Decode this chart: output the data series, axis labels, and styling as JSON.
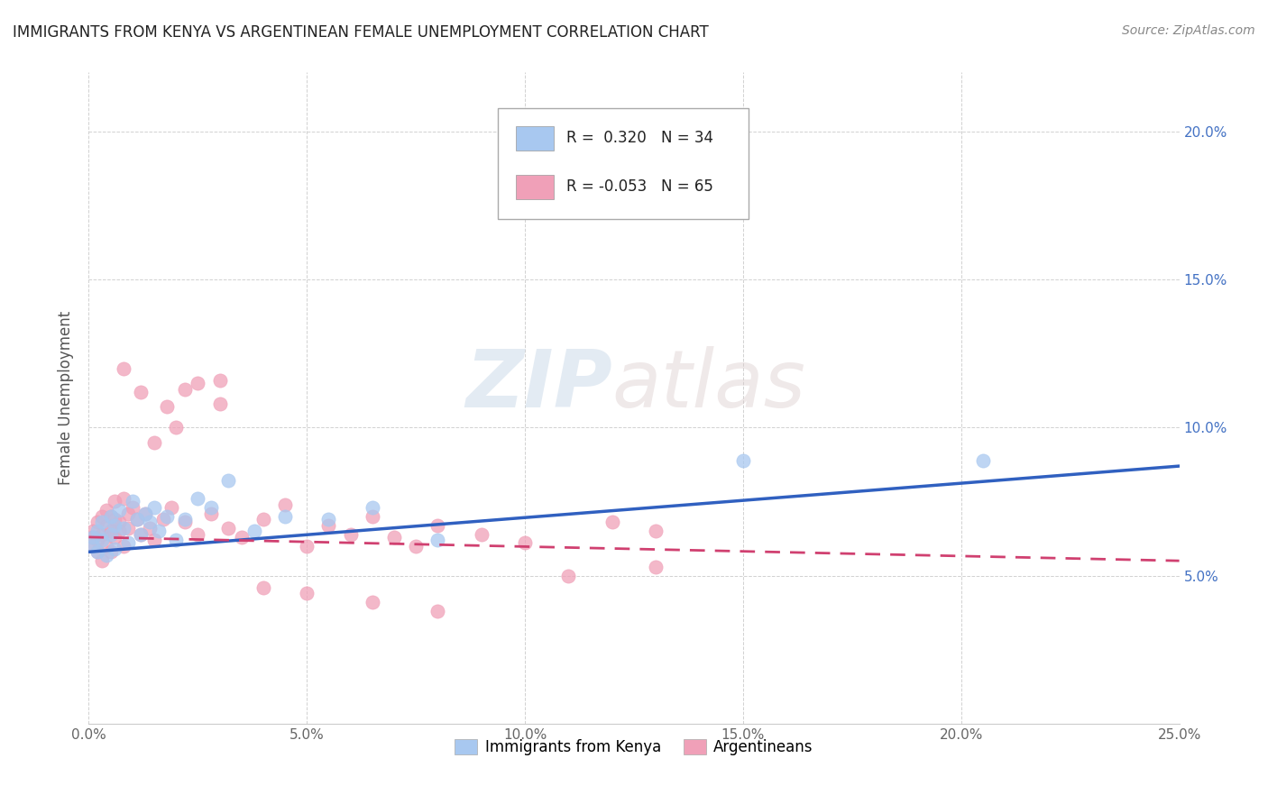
{
  "title": "IMMIGRANTS FROM KENYA VS ARGENTINEAN FEMALE UNEMPLOYMENT CORRELATION CHART",
  "source": "Source: ZipAtlas.com",
  "ylabel": "Female Unemployment",
  "xlim": [
    0.0,
    0.25
  ],
  "ylim": [
    0.0,
    0.22
  ],
  "xtick_vals": [
    0.0,
    0.05,
    0.1,
    0.15,
    0.2,
    0.25
  ],
  "xtick_labels": [
    "0.0%",
    "5.0%",
    "10.0%",
    "15.0%",
    "20.0%",
    "25.0%"
  ],
  "ytick_vals": [
    0.05,
    0.1,
    0.15,
    0.2
  ],
  "ytick_labels": [
    "5.0%",
    "10.0%",
    "15.0%",
    "20.0%"
  ],
  "right_ytick_vals": [
    0.05,
    0.1,
    0.15,
    0.2
  ],
  "right_ytick_labels": [
    "5.0%",
    "10.0%",
    "15.0%",
    "20.0%"
  ],
  "legend_r1": "R =  0.320",
  "legend_n1": "N = 34",
  "legend_r2": "R = -0.053",
  "legend_n2": "N = 65",
  "legend_labels_bottom": [
    "Immigrants from Kenya",
    "Argentineans"
  ],
  "watermark_zip": "ZIP",
  "watermark_atlas": "atlas",
  "kenya_color": "#a8c8f0",
  "arg_color": "#f0a0b8",
  "kenya_line_color": "#3060c0",
  "arg_line_color": "#d04070",
  "background_color": "#ffffff",
  "grid_color": "#cccccc",
  "kenya_scatter_x": [
    0.001,
    0.001,
    0.002,
    0.002,
    0.003,
    0.003,
    0.004,
    0.005,
    0.005,
    0.006,
    0.006,
    0.007,
    0.008,
    0.009,
    0.01,
    0.011,
    0.012,
    0.013,
    0.014,
    0.015,
    0.016,
    0.018,
    0.02,
    0.022,
    0.025,
    0.028,
    0.032,
    0.038,
    0.045,
    0.055,
    0.065,
    0.08,
    0.15,
    0.205
  ],
  "kenya_scatter_y": [
    0.06,
    0.063,
    0.058,
    0.065,
    0.062,
    0.068,
    0.057,
    0.07,
    0.064,
    0.067,
    0.059,
    0.072,
    0.066,
    0.061,
    0.075,
    0.069,
    0.064,
    0.071,
    0.068,
    0.073,
    0.065,
    0.07,
    0.062,
    0.069,
    0.076,
    0.073,
    0.082,
    0.065,
    0.07,
    0.069,
    0.073,
    0.062,
    0.089,
    0.089
  ],
  "arg_scatter_x": [
    0.001,
    0.001,
    0.001,
    0.002,
    0.002,
    0.002,
    0.003,
    0.003,
    0.003,
    0.004,
    0.004,
    0.004,
    0.005,
    0.005,
    0.005,
    0.006,
    0.006,
    0.006,
    0.007,
    0.007,
    0.008,
    0.008,
    0.009,
    0.009,
    0.01,
    0.011,
    0.012,
    0.013,
    0.014,
    0.015,
    0.017,
    0.019,
    0.022,
    0.025,
    0.028,
    0.032,
    0.035,
    0.04,
    0.045,
    0.05,
    0.055,
    0.06,
    0.065,
    0.07,
    0.075,
    0.08,
    0.09,
    0.1,
    0.12,
    0.13,
    0.025,
    0.03,
    0.015,
    0.02,
    0.008,
    0.012,
    0.018,
    0.022,
    0.03,
    0.04,
    0.05,
    0.065,
    0.08,
    0.11,
    0.13
  ],
  "arg_scatter_y": [
    0.06,
    0.063,
    0.065,
    0.058,
    0.062,
    0.068,
    0.055,
    0.07,
    0.064,
    0.06,
    0.067,
    0.072,
    0.058,
    0.065,
    0.07,
    0.063,
    0.069,
    0.075,
    0.065,
    0.068,
    0.06,
    0.076,
    0.071,
    0.066,
    0.073,
    0.069,
    0.064,
    0.071,
    0.066,
    0.062,
    0.069,
    0.073,
    0.068,
    0.064,
    0.071,
    0.066,
    0.063,
    0.069,
    0.074,
    0.06,
    0.067,
    0.064,
    0.07,
    0.063,
    0.06,
    0.067,
    0.064,
    0.061,
    0.068,
    0.065,
    0.115,
    0.108,
    0.095,
    0.1,
    0.12,
    0.112,
    0.107,
    0.113,
    0.116,
    0.046,
    0.044,
    0.041,
    0.038,
    0.05,
    0.053
  ],
  "kenya_trend_x": [
    0.0,
    0.25
  ],
  "kenya_trend_y": [
    0.058,
    0.087
  ],
  "arg_trend_x": [
    0.0,
    0.25
  ],
  "arg_trend_y": [
    0.063,
    0.055
  ],
  "arg_trend_dashes": [
    6,
    4
  ]
}
